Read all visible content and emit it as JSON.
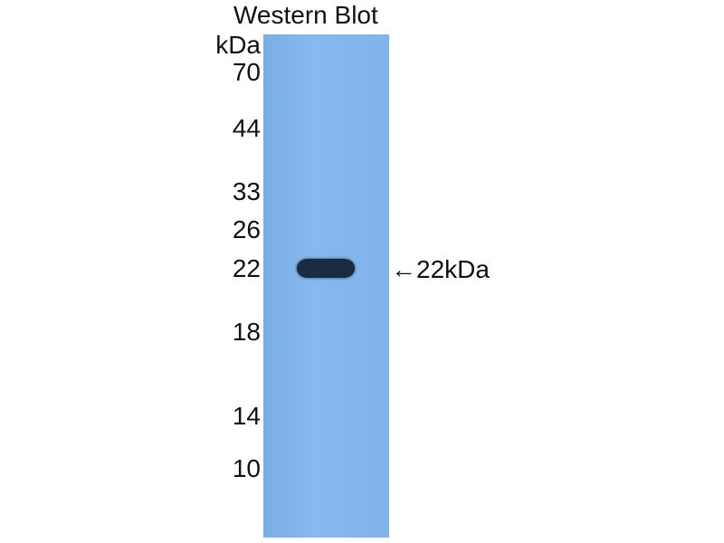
{
  "title": "Western Blot",
  "unit_label": "kDa",
  "markers": [
    "70",
    "44",
    "33",
    "26",
    "22",
    "18",
    "14",
    "10"
  ],
  "band_annotation": "←22kDa",
  "colors": {
    "membrane": "#80b4eb",
    "band": "#1a2b44"
  }
}
